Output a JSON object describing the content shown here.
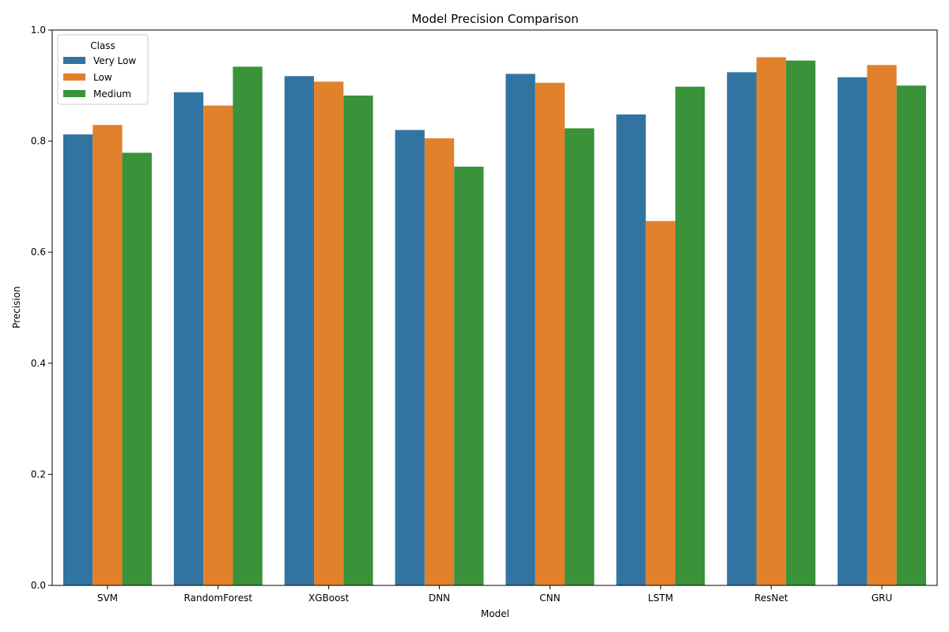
{
  "chart_data": {
    "type": "bar",
    "title": "Model Precision Comparison",
    "xlabel": "Model",
    "ylabel": "Precision",
    "ylim": [
      0,
      1.0
    ],
    "yticks": [
      "0.0",
      "0.2",
      "0.4",
      "0.6",
      "0.8",
      "1.0"
    ],
    "categories": [
      "SVM",
      "RandomForest",
      "XGBoost",
      "DNN",
      "CNN",
      "LSTM",
      "ResNet",
      "GRU"
    ],
    "legend": {
      "title": "Class",
      "placement": "top-left"
    },
    "series": [
      {
        "name": "Very Low",
        "color": "#3274a1",
        "values": [
          0.812,
          0.888,
          0.917,
          0.82,
          0.921,
          0.848,
          0.924,
          0.915
        ]
      },
      {
        "name": "Low",
        "color": "#e1812c",
        "values": [
          0.829,
          0.864,
          0.907,
          0.805,
          0.905,
          0.656,
          0.951,
          0.937
        ]
      },
      {
        "name": "Medium",
        "color": "#3a923a",
        "values": [
          0.779,
          0.934,
          0.882,
          0.754,
          0.823,
          0.898,
          0.945,
          0.9
        ]
      }
    ]
  }
}
